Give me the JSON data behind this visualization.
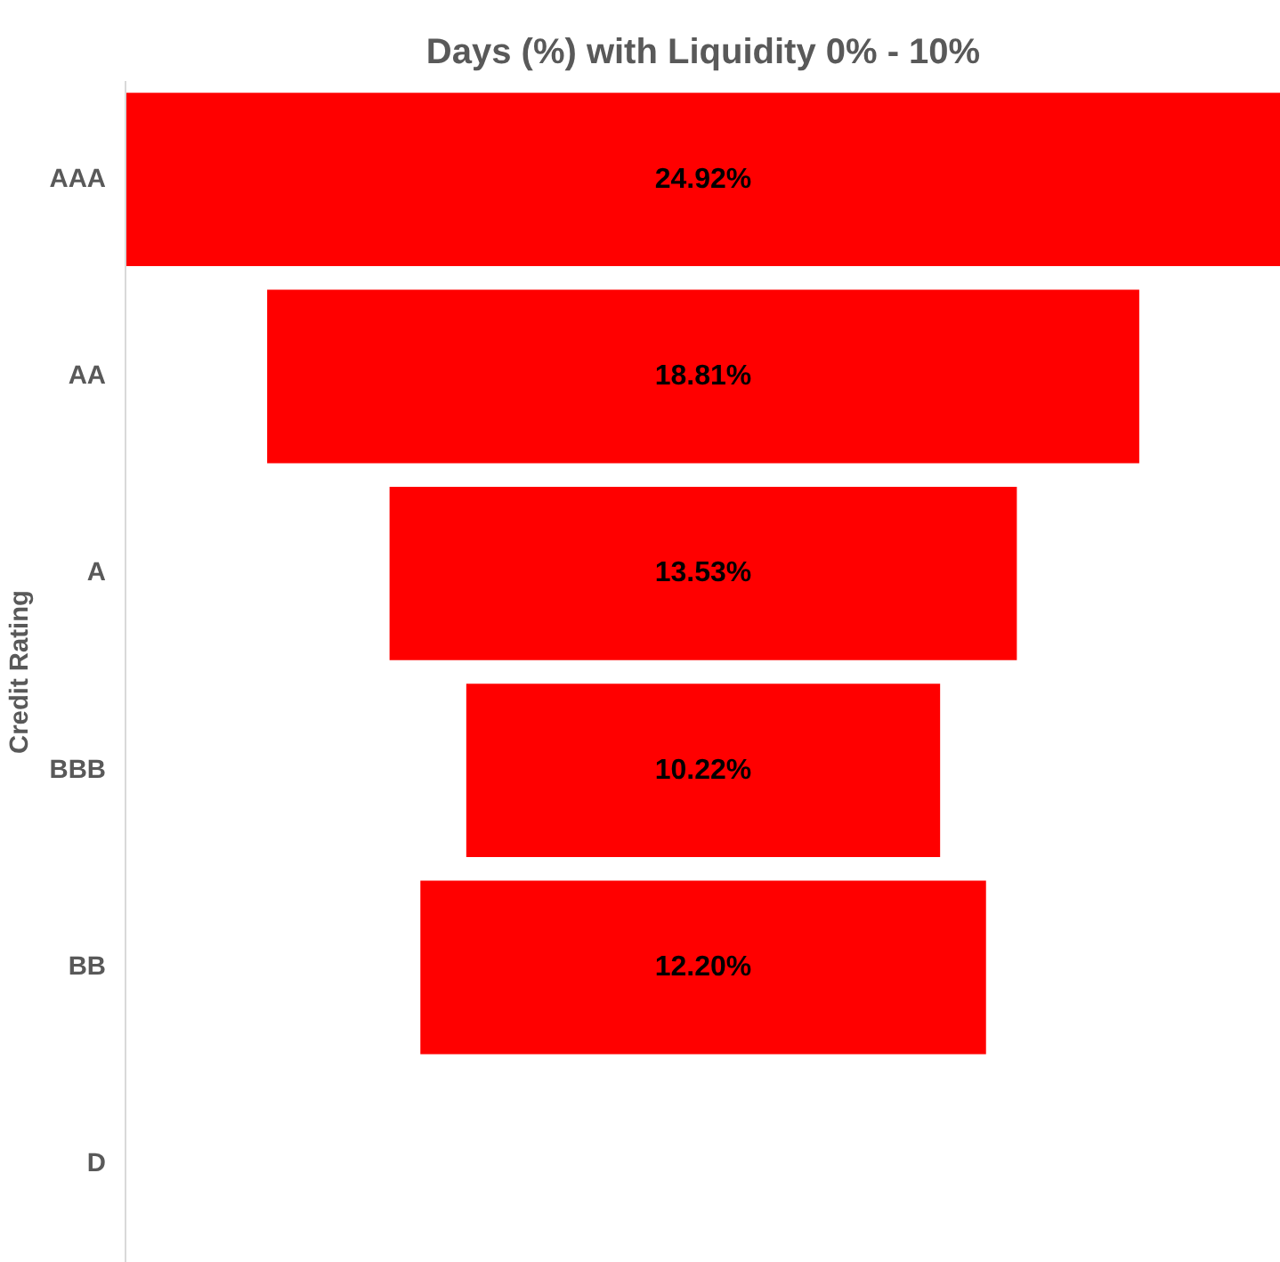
{
  "chart_data": {
    "type": "other",
    "title": "Days (%) with Liquidity 0% - 10%",
    "ylabel": "Credit Rating",
    "categories": [
      "AAA",
      "AA",
      "A",
      "BBB",
      "BB",
      "D"
    ],
    "values": [
      24.92,
      18.81,
      13.53,
      10.22,
      12.2,
      null
    ],
    "value_labels": [
      "24.92%",
      "18.81%",
      "13.53%",
      "10.22%",
      "12.20%",
      null
    ],
    "color": "#ff0000"
  }
}
